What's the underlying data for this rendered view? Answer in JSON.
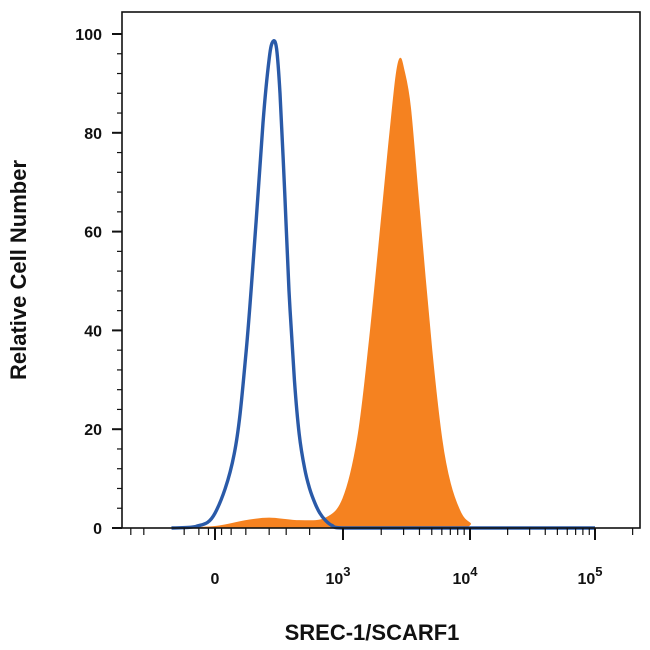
{
  "chart_data": {
    "type": "area",
    "xlabel": "SREC-1/SCARF1",
    "ylabel": "Relative Cell Number",
    "x_scale": "biexponential",
    "ylim": [
      0,
      100
    ],
    "y_ticks": [
      "0",
      "20",
      "40",
      "60",
      "80",
      "100"
    ],
    "x_ticks": [
      {
        "base": "0",
        "exp": ""
      },
      {
        "base": "10",
        "exp": "3"
      },
      {
        "base": "10",
        "exp": "4"
      },
      {
        "base": "10",
        "exp": "5"
      }
    ],
    "grid": false,
    "legend": "none",
    "colors": {
      "filled": "#f58220",
      "outline": "#2a5aa8",
      "axis": "#111111"
    },
    "series": [
      {
        "style": "outline",
        "x": [
          -150,
          -60,
          0,
          60,
          100,
          140,
          170,
          200,
          220,
          240,
          260,
          290,
          320,
          360,
          400,
          450,
          500,
          560,
          620,
          700,
          800,
          1000,
          3000,
          10000,
          100000
        ],
        "y": [
          0,
          0.3,
          3,
          15,
          35,
          62,
          82,
          95,
          98.5,
          97,
          88,
          68,
          48,
          30,
          19,
          12,
          8,
          5,
          3,
          1.5,
          0.5,
          0,
          0,
          0,
          0
        ]
      },
      {
        "style": "filled",
        "x": [
          -150,
          0,
          100,
          200,
          400,
          700,
          1000,
          1300,
          1600,
          2000,
          2300,
          2600,
          2800,
          3000,
          3400,
          4000,
          5000,
          6000,
          7000,
          8500,
          10000,
          12000,
          100000
        ],
        "y": [
          0,
          0.3,
          1.5,
          2,
          1.5,
          2,
          6,
          18,
          37,
          62,
          78,
          91,
          95,
          93,
          85,
          64,
          36,
          18,
          9,
          3,
          1,
          0,
          0
        ]
      }
    ]
  }
}
